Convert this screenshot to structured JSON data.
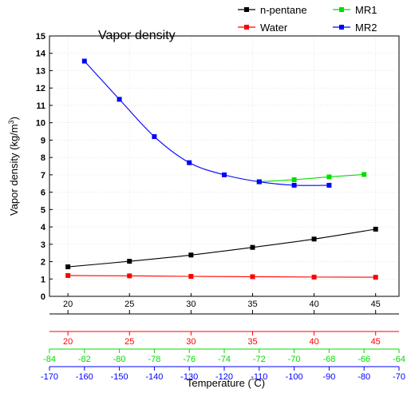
{
  "chart_data": {
    "type": "line",
    "title": "Vapor density",
    "ylabel": "Vapor density (kg/m",
    "ylabel_sup": "3",
    "ylabel_end": ")",
    "xlabel": "Temperature (",
    "xlabel_deg": "°",
    "xlabel_end": "C)",
    "ylim": [
      0,
      15
    ],
    "yticks": [
      "0",
      "1",
      "2",
      "3",
      "4",
      "5",
      "6",
      "7",
      "8",
      "9",
      "10",
      "11",
      "12",
      "13",
      "14",
      "15"
    ],
    "grid": true,
    "legend_position": "top-right, outside plot",
    "x_axes": [
      {
        "name": "n-pentane",
        "color": "#000000",
        "min": 20,
        "max": 45,
        "ticks": [
          20,
          25,
          30,
          35,
          40,
          45
        ],
        "range": [
          18.5,
          46.9
        ]
      },
      {
        "name": "Water",
        "color": "#ff0000",
        "min": 20,
        "max": 45,
        "ticks": [
          20,
          25,
          30,
          35,
          40,
          45
        ],
        "range": [
          18.5,
          46.9
        ]
      },
      {
        "name": "MR1",
        "color": "#00dd00",
        "min": -84,
        "max": -64,
        "ticks": [
          -84,
          -82,
          -80,
          -78,
          -76,
          -74,
          -72,
          -70,
          -68,
          -66,
          -64
        ],
        "range": [
          -84,
          -64
        ]
      },
      {
        "name": "MR2",
        "color": "#0000ff",
        "min": -170,
        "max": -70,
        "ticks": [
          -170,
          -160,
          -150,
          -140,
          -130,
          -120,
          -110,
          -100,
          -90,
          -80,
          -70
        ],
        "range": [
          -170,
          -70
        ]
      }
    ],
    "series": [
      {
        "name": "n-pentane",
        "color": "#000000",
        "axis": 0,
        "x": [
          20,
          25,
          30,
          35,
          40,
          45
        ],
        "y": [
          1.7,
          2.02,
          2.38,
          2.82,
          3.3,
          3.87
        ]
      },
      {
        "name": "Water",
        "color": "#ff0000",
        "axis": 1,
        "x": [
          20,
          25,
          30,
          35,
          40,
          45
        ],
        "y": [
          1.2,
          1.18,
          1.15,
          1.13,
          1.11,
          1.1
        ]
      },
      {
        "name": "MR1",
        "color": "#00dd00",
        "axis": 2,
        "x": [
          -72,
          -70,
          -68,
          -66
        ],
        "y": [
          6.6,
          6.72,
          6.88,
          7.02
        ]
      },
      {
        "name": "MR2",
        "color": "#0000ff",
        "axis": 3,
        "x": [
          -160,
          -150,
          -140,
          -130,
          -120,
          -110,
          -100,
          -90
        ],
        "y": [
          13.55,
          11.35,
          9.2,
          7.7,
          7.0,
          6.6,
          6.4,
          6.4
        ]
      }
    ],
    "legend": [
      {
        "label": "n-pentane",
        "color": "#000000"
      },
      {
        "label": "MR1",
        "color": "#00dd00"
      },
      {
        "label": "Water",
        "color": "#ff0000"
      },
      {
        "label": "MR2",
        "color": "#0000ff"
      }
    ]
  }
}
